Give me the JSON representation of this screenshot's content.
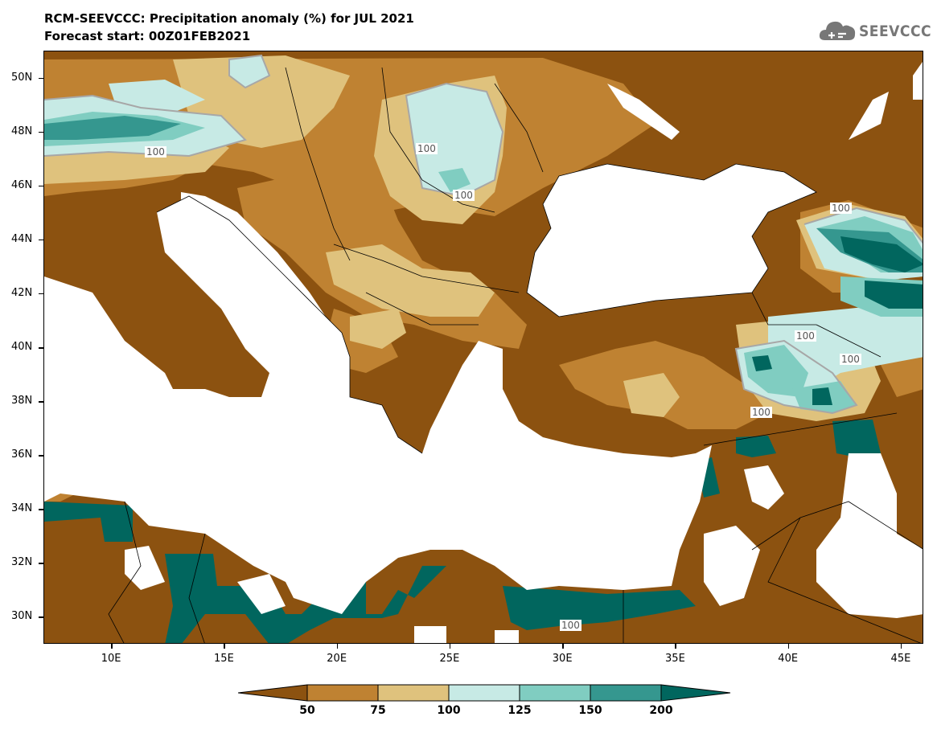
{
  "header": {
    "title": "RCM-SEEVCCC: Precipitation anomaly (%) for JUL 2021",
    "subtitle": "Forecast start: 00Z01FEB2021",
    "logo_text": "SEEVCCC"
  },
  "map": {
    "lon_range": [
      7,
      46
    ],
    "lat_range": [
      29,
      51
    ],
    "lat_ticks": [
      "50N",
      "48N",
      "46N",
      "44N",
      "42N",
      "40N",
      "38N",
      "36N",
      "34N",
      "32N",
      "30N"
    ],
    "lon_ticks": [
      "10E",
      "15E",
      "20E",
      "25E",
      "30E",
      "35E",
      "40E",
      "45E"
    ],
    "contour_labels": [
      "100",
      "100",
      "100",
      "100",
      "100",
      "100",
      "100",
      "100"
    ]
  },
  "legend": {
    "levels": [
      "50",
      "75",
      "100",
      "125",
      "150",
      "200"
    ],
    "colors": [
      "#8c5210",
      "#bf8232",
      "#dfc27d",
      "#c7eae5",
      "#80cdc1",
      "#35978f",
      "#01665e"
    ]
  },
  "colors": {
    "below_50": "#8c5210",
    "range_50_75": "#bf8232",
    "range_75_100": "#dfc27d",
    "range_100_125": "#c7eae5",
    "range_125_150": "#80cdc1",
    "range_150_200": "#35978f",
    "above_200": "#01665e",
    "sea": "#ffffff",
    "logo": "#777777"
  }
}
